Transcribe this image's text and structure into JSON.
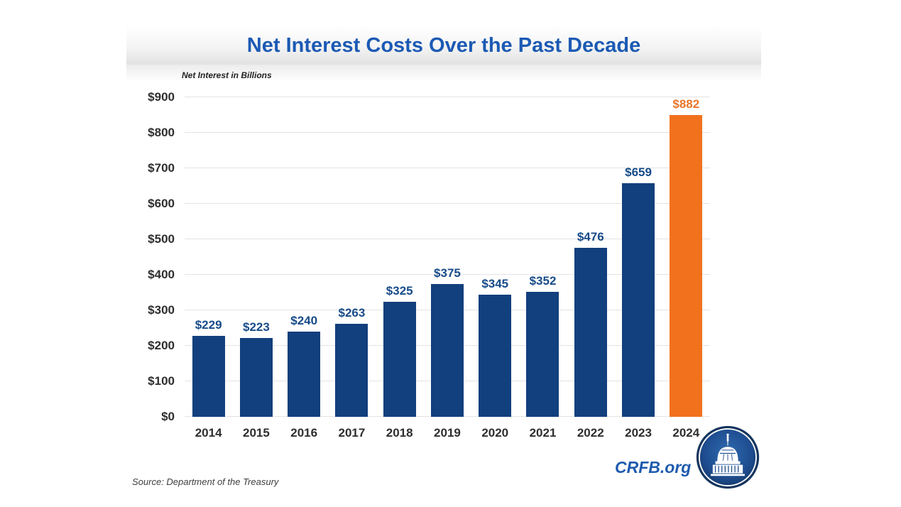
{
  "header": {
    "title": "Net Interest Costs Over the Past Decade"
  },
  "chart_area": {
    "axis_note": "Net Interest in Billions"
  },
  "footer": {
    "source": "Source: Department of the Treasury",
    "brand": "CRFB.org",
    "logo": "capitol-dome-logo"
  },
  "colors": {
    "title_blue": "#1C5AB4",
    "bar_navy": "#123F7D",
    "bar_orange": "#F2711D",
    "label_navy": "#174B88",
    "label_orange": "#E9762B",
    "axis_text": "#2E2E2E",
    "gridline": "#E3E3E3",
    "brand_blue": "#1E5AAE"
  },
  "chart_data": {
    "type": "bar",
    "title": "Net Interest Costs Over the Past Decade",
    "ylabel": "Net Interest in Billions",
    "xlabel": "",
    "categories": [
      "2014",
      "2015",
      "2016",
      "2017",
      "2018",
      "2019",
      "2020",
      "2021",
      "2022",
      "2023",
      "2024"
    ],
    "values": [
      229,
      223,
      240,
      263,
      325,
      375,
      345,
      352,
      476,
      659,
      882
    ],
    "value_labels": [
      "$229",
      "$223",
      "$240",
      "$263",
      "$325",
      "$375",
      "$345",
      "$352",
      "$476",
      "$659",
      "$882"
    ],
    "highlight_index": 10,
    "highlight_category": "2024",
    "ylim": [
      0,
      900
    ],
    "yticks": [
      {
        "value": 0,
        "label": "$0"
      },
      {
        "value": 100,
        "label": "$100"
      },
      {
        "value": 200,
        "label": "$200"
      },
      {
        "value": 300,
        "label": "$300"
      },
      {
        "value": 400,
        "label": "$400"
      },
      {
        "value": 500,
        "label": "$500"
      },
      {
        "value": 600,
        "label": "$600"
      },
      {
        "value": 700,
        "label": "$700"
      },
      {
        "value": 800,
        "label": "$800"
      },
      {
        "value": 900,
        "label": "$900"
      }
    ],
    "grid": true,
    "legend": false,
    "bar_color": "#123F7D",
    "highlight_color": "#F2711D",
    "label_color": "#174B88",
    "highlight_label_color": "#E9762B"
  }
}
